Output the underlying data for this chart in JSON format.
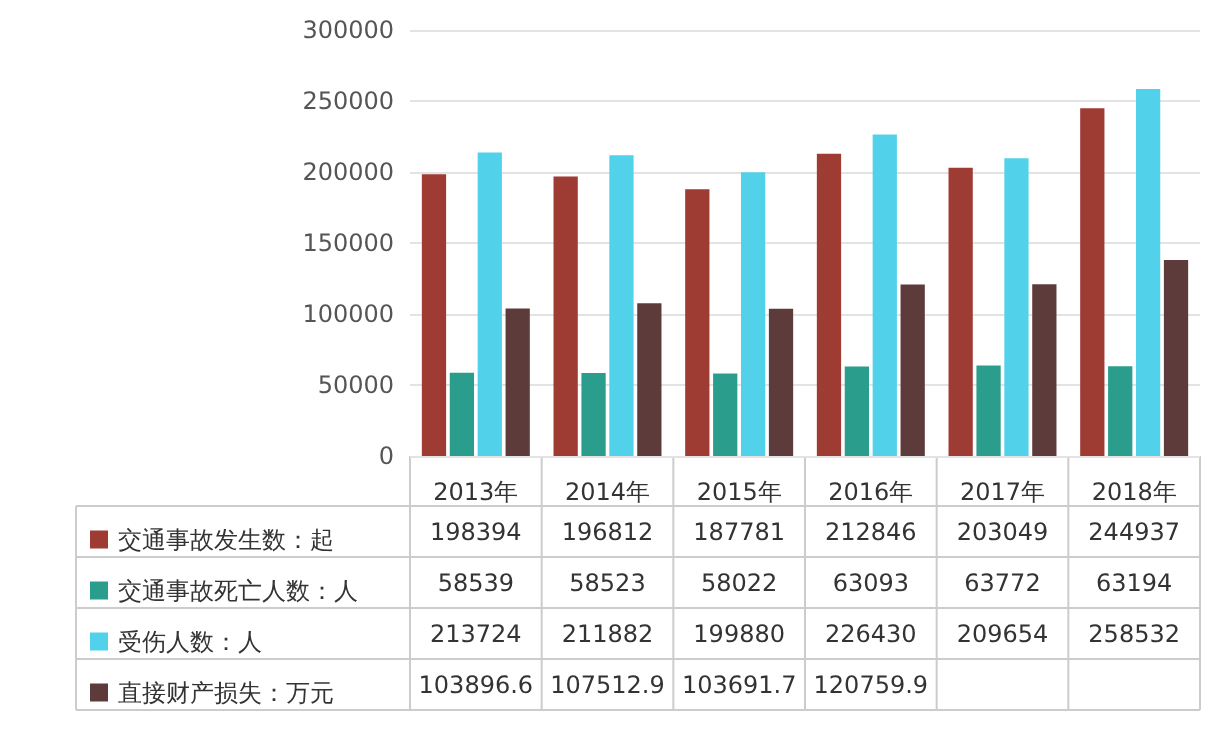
{
  "chart_data": {
    "type": "bar",
    "categories": [
      "2013年",
      "2014年",
      "2015年",
      "2016年",
      "2017年",
      "2018年"
    ],
    "series": [
      {
        "name": "交通事故发生数：起",
        "color": "#9e3b32",
        "values": [
          198394,
          196812,
          187781,
          212846,
          203049,
          244937
        ],
        "value_labels": [
          "198394",
          "196812",
          "187781",
          "212846",
          "203049",
          "244937"
        ]
      },
      {
        "name": "交通事故死亡人数：人",
        "color": "#2a9d8c",
        "values": [
          58539,
          58523,
          58022,
          63093,
          63772,
          63194
        ],
        "value_labels": [
          "58539",
          "58523",
          "58022",
          "63093",
          "63772",
          "63194"
        ]
      },
      {
        "name": "受伤人数：人",
        "color": "#52d2ea",
        "values": [
          213724,
          211882,
          199880,
          226430,
          209654,
          258532
        ],
        "value_labels": [
          "213724",
          "211882",
          "199880",
          "226430",
          "209654",
          "258532"
        ]
      },
      {
        "name": "直接财产损失：万元",
        "color": "#5e3b3b",
        "values": [
          103896.6,
          107512.9,
          103691.7,
          120759.9,
          121000,
          138000
        ],
        "value_labels": [
          "103896.6",
          "107512.9",
          "103691.7",
          "120759.9",
          null,
          null
        ]
      }
    ],
    "ylim": [
      0,
      300000
    ],
    "yticks": [
      0,
      50000,
      100000,
      150000,
      200000,
      250000,
      300000
    ],
    "grid": "y",
    "legend": "bottom"
  }
}
